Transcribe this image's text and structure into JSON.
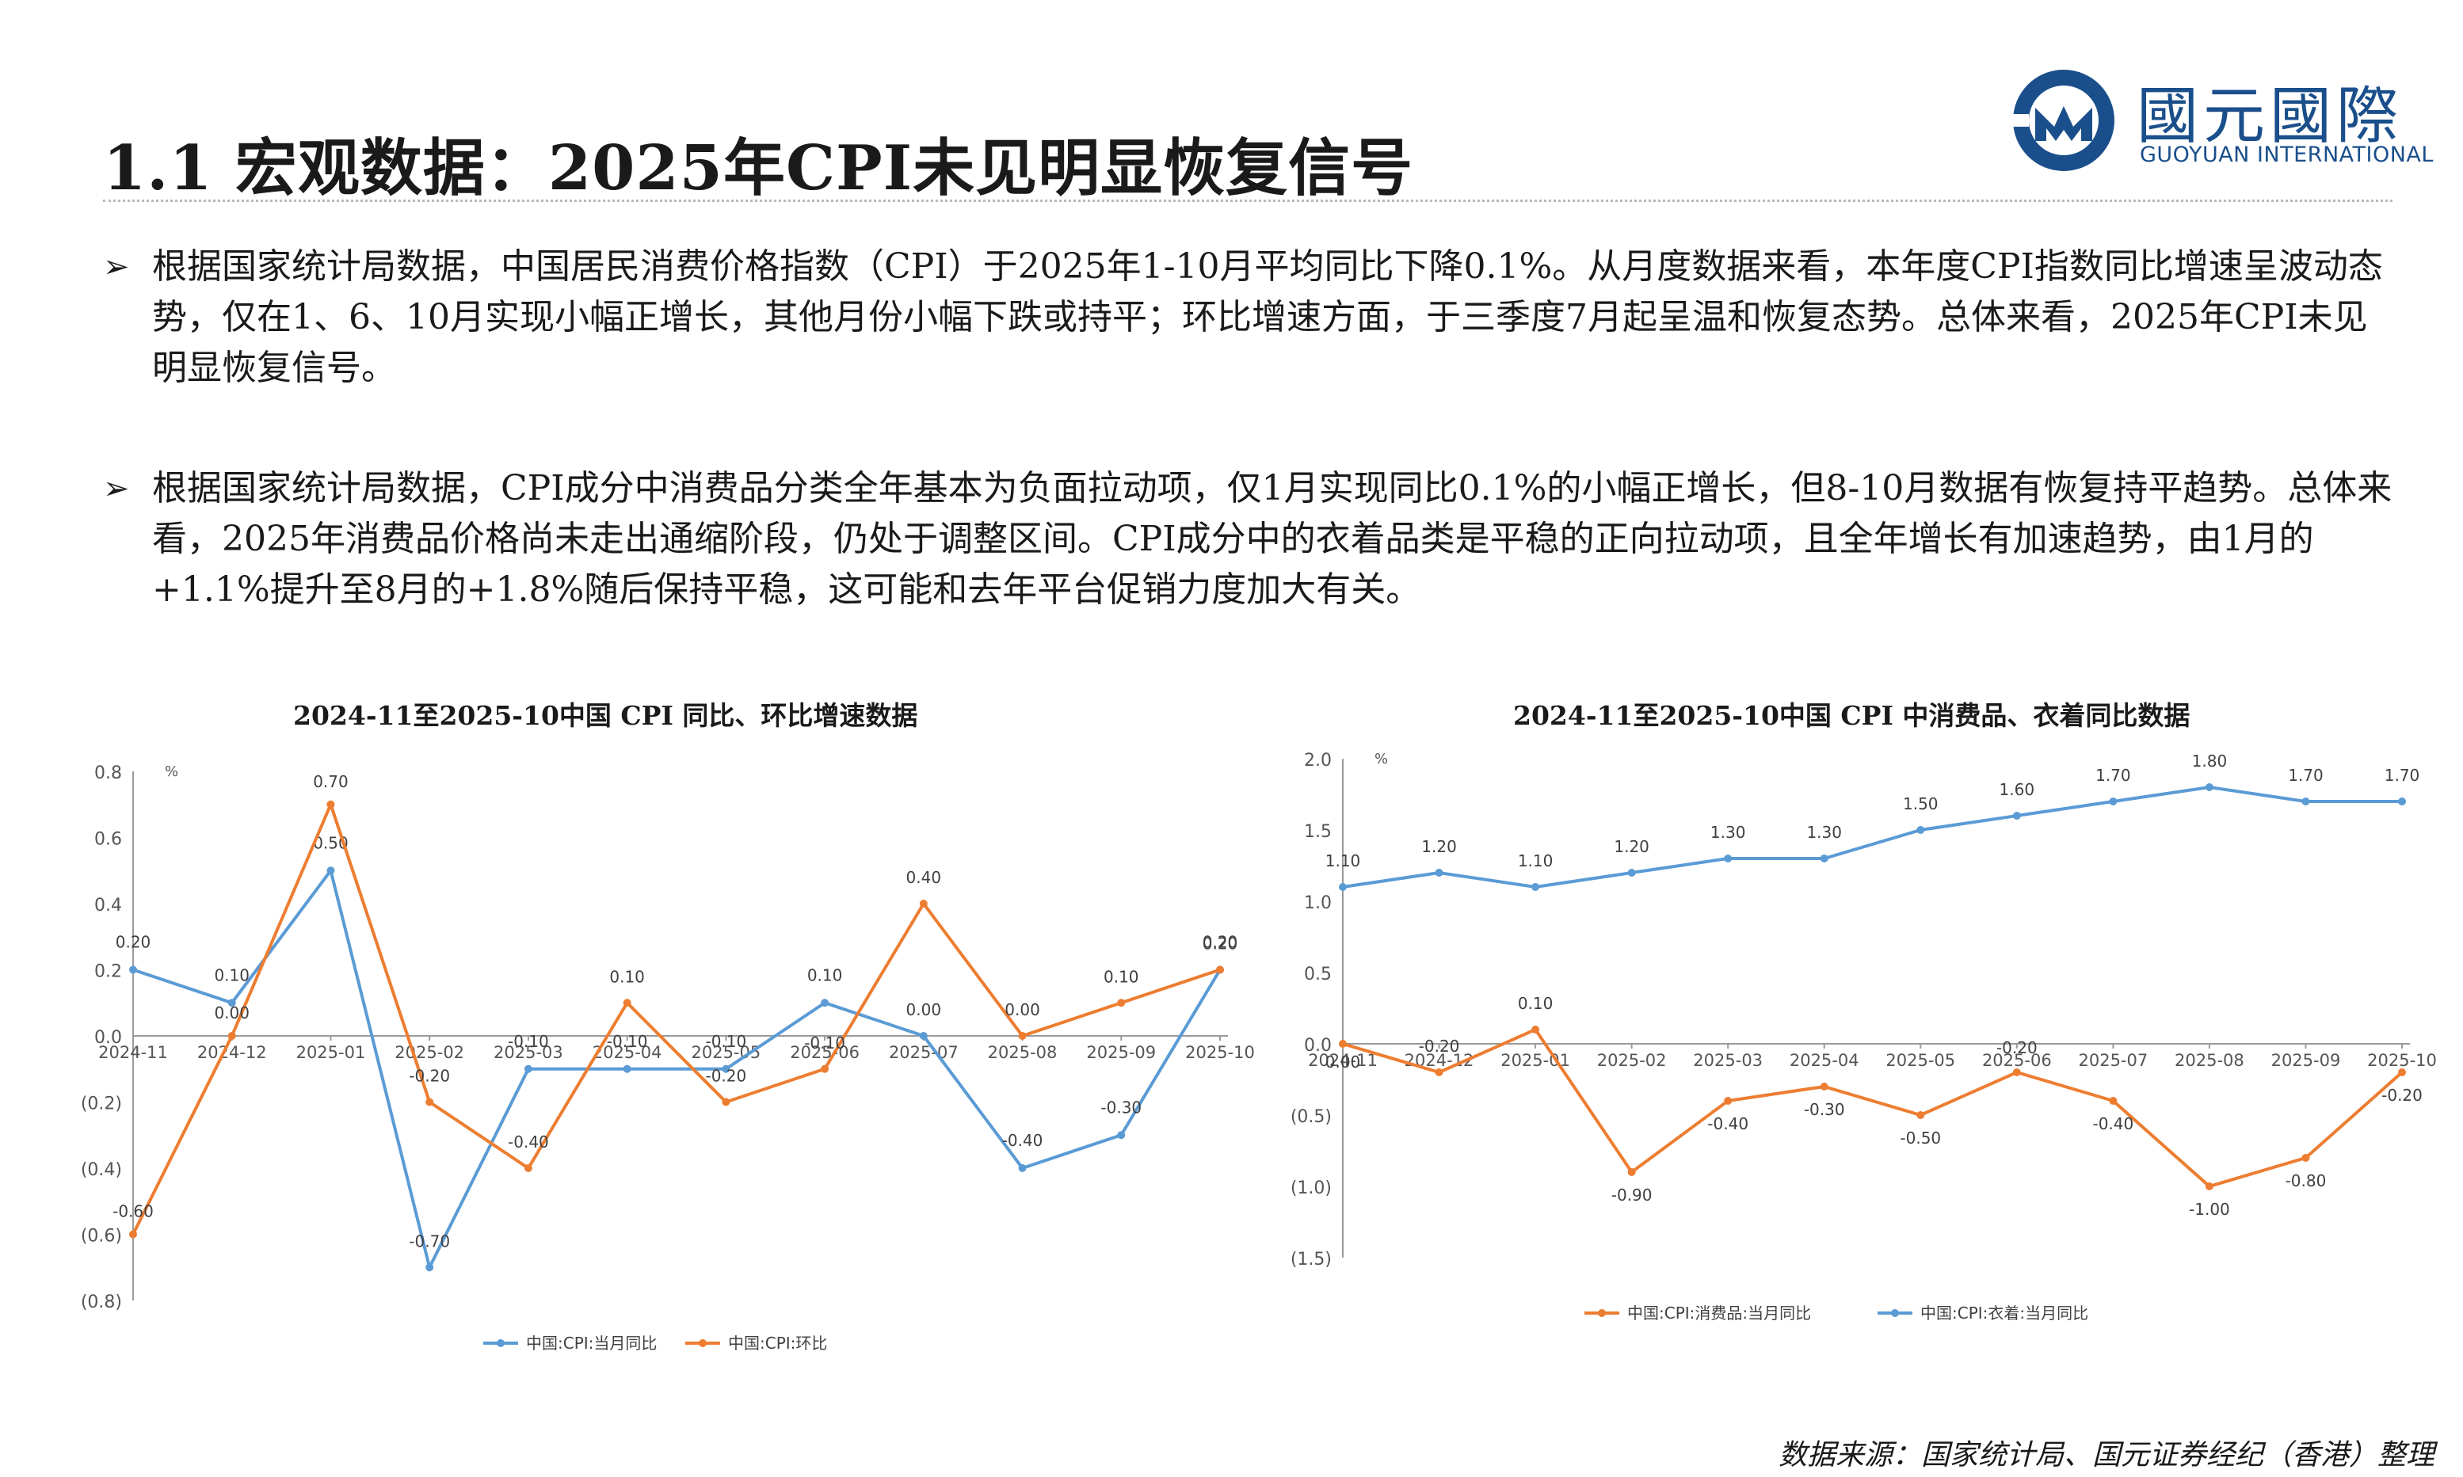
{
  "header": {
    "title": "1.1 宏观数据：2025年CPI未见明显恢复信号",
    "logo_cn": "國元國際",
    "logo_en": "GUOYUAN INTERNATIONAL"
  },
  "bullets": [
    {
      "mark": "➢",
      "text": "根据国家统计局数据，中国居民消费价格指数（CPI）于2025年1-10月平均同比下降0.1%。从月度数据来看，本年度CPI指数同比增速呈波动态势，仅在1、6、10月实现小幅正增长，其他月份小幅下跌或持平；环比增速方面，于三季度7月起呈温和恢复态势。总体来看，2025年CPI未见明显恢复信号。"
    },
    {
      "mark": "➢",
      "text": "根据国家统计局数据，CPI成分中消费品分类全年基本为负面拉动项，仅1月实现同比0.1%的小幅正增长，但8-10月数据有恢复持平趋势。总体来看，2025年消费品价格尚未走出通缩阶段，仍处于调整区间。CPI成分中的衣着品类是平稳的正向拉动项，且全年增长有加速趋势，由1月的+1.1%提升至8月的+1.8%随后保持平稳，这可能和去年平台促销力度加大有关。"
    }
  ],
  "source": "数据来源：国家统计局、国元证券经纪（香港）整理",
  "chart_data": [
    {
      "type": "line",
      "title": "2024-11至2025-10中国 CPI 同比、环比增速数据",
      "unit": "%",
      "categories": [
        "2024-11",
        "2024-12",
        "2025-01",
        "2025-02",
        "2025-03",
        "2025-04",
        "2025-05",
        "2025-06",
        "2025-07",
        "2025-08",
        "2025-09",
        "2025-10"
      ],
      "ylim": [
        -0.8,
        0.8
      ],
      "yticks": [
        0.8,
        0.6,
        0.4,
        0.2,
        0.0,
        -0.2,
        -0.4,
        -0.6,
        -0.8
      ],
      "ytick_labels": [
        "0.8",
        "0.6",
        "0.4",
        "0.2",
        "0.0",
        "(0.2)",
        "(0.4)",
        "(0.6)",
        "(0.8)"
      ],
      "series": [
        {
          "name": "中国:CPI:当月同比",
          "color": "#5b9bd5",
          "values": [
            0.2,
            0.1,
            0.5,
            -0.7,
            -0.1,
            -0.1,
            -0.1,
            0.1,
            0.0,
            -0.4,
            -0.3,
            0.2
          ],
          "labels": [
            "0.20",
            "0.10",
            "0.50",
            "-0.70",
            "-0.10",
            "-0.10",
            "-0.10",
            "0.10",
            "0.00",
            "-0.40",
            "-0.30",
            "0.20"
          ]
        },
        {
          "name": "中国:CPI:环比",
          "color": "#ed7d31",
          "values": [
            -0.6,
            0.0,
            0.7,
            -0.2,
            -0.4,
            0.1,
            -0.2,
            -0.1,
            0.4,
            0.0,
            0.1,
            0.2
          ],
          "labels": [
            "-0.60",
            "0.00",
            "0.70",
            "-0.20",
            "-0.40",
            "0.10",
            "-0.20",
            "-0.10",
            "0.40",
            "0.00",
            "0.10",
            "0.20"
          ]
        }
      ]
    },
    {
      "type": "line",
      "title": "2024-11至2025-10中国 CPI 中消费品、衣着同比数据",
      "unit": "%",
      "categories": [
        "2024-11",
        "2024-12",
        "2025-01",
        "2025-02",
        "2025-03",
        "2025-04",
        "2025-05",
        "2025-06",
        "2025-07",
        "2025-08",
        "2025-09",
        "2025-10"
      ],
      "ylim": [
        -1.5,
        2.0
      ],
      "yticks": [
        2.0,
        1.5,
        1.0,
        0.5,
        0.0,
        -0.5,
        -1.0,
        -1.5
      ],
      "ytick_labels": [
        "2.0",
        "1.5",
        "1.0",
        "0.5",
        "0.0",
        "(0.5)",
        "(1.0)",
        "(1.5)"
      ],
      "series": [
        {
          "name": "中国:CPI:消费品:当月同比",
          "color": "#ed7d31",
          "values": [
            0.0,
            -0.2,
            0.1,
            -0.9,
            -0.4,
            -0.3,
            -0.5,
            -0.2,
            -0.4,
            -1.0,
            -0.8,
            -0.2
          ],
          "labels": [
            "0.00",
            "-0.20",
            "0.10",
            "-0.90",
            "-0.40",
            "-0.30",
            "-0.50",
            "-0.20",
            "-0.40",
            "-1.00",
            "-0.80",
            "-0.20"
          ]
        },
        {
          "name": "中国:CPI:衣着:当月同比",
          "color": "#5b9bd5",
          "values": [
            1.1,
            1.2,
            1.1,
            1.2,
            1.3,
            1.3,
            1.5,
            1.6,
            1.7,
            1.8,
            1.7,
            1.7
          ],
          "labels": [
            "1.10",
            "1.20",
            "1.10",
            "1.20",
            "1.30",
            "1.30",
            "1.50",
            "1.60",
            "1.70",
            "1.80",
            "1.70",
            "1.70"
          ]
        }
      ]
    }
  ]
}
